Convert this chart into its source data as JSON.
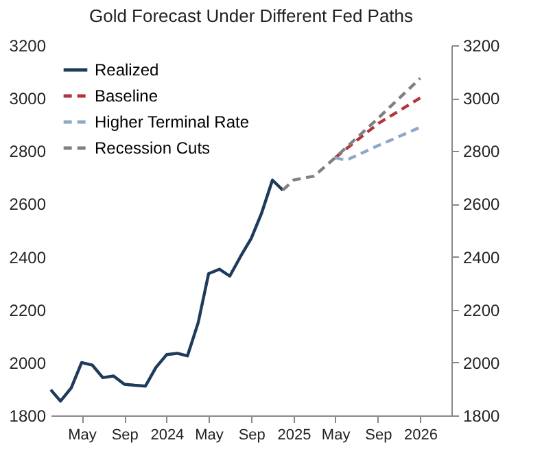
{
  "chart_data": {
    "type": "line",
    "title": "Gold Forecast Under Different Fed Paths",
    "xlim": [
      "2023-02",
      "2026-04"
    ],
    "xticks": [
      {
        "value": "2023-05",
        "label": "May"
      },
      {
        "value": "2023-09",
        "label": "Sep"
      },
      {
        "value": "2024-01",
        "label": "2024"
      },
      {
        "value": "2024-05",
        "label": "May"
      },
      {
        "value": "2024-09",
        "label": "Sep"
      },
      {
        "value": "2025-01",
        "label": "2025"
      },
      {
        "value": "2025-05",
        "label": "May"
      },
      {
        "value": "2025-09",
        "label": "Sep"
      },
      {
        "value": "2026-01",
        "label": "2026"
      }
    ],
    "ylim": [
      1800,
      3200
    ],
    "yticks": [
      1800,
      2000,
      2200,
      2400,
      2600,
      2800,
      3000,
      3200
    ],
    "y2lim": [
      1800,
      3200
    ],
    "y2ticks": [
      1800,
      2000,
      2200,
      2400,
      2600,
      2800,
      3000,
      3200
    ],
    "legend": "top left",
    "grid": false,
    "series": [
      {
        "name": "Realized",
        "color": "#1f3b5a",
        "line_style": "solid",
        "x": [
          "2023-02",
          "2023-03",
          "2023-04",
          "2023-05",
          "2023-06",
          "2023-07",
          "2023-08",
          "2023-09",
          "2023-10",
          "2023-11",
          "2023-12",
          "2024-01",
          "2024-02",
          "2024-03",
          "2024-04",
          "2024-05",
          "2024-06",
          "2024-07",
          "2024-08",
          "2024-09",
          "2024-10",
          "2024-11",
          "2024-12"
        ],
        "values": [
          1897,
          1854,
          1904,
          2000,
          1990,
          1943,
          1949,
          1918,
          1914,
          1911,
          1981,
          2030,
          2035,
          2025,
          2151,
          2336,
          2353,
          2327,
          2401,
          2470,
          2566,
          2690,
          2652
        ]
      },
      {
        "name": "Baseline",
        "color": "#b5343c",
        "line_style": "dashed",
        "x": [
          "2025-05",
          "2025-09",
          "2026-01"
        ],
        "values": [
          2775,
          2903,
          3001
        ]
      },
      {
        "name": "Higher Terminal Rate",
        "color": "#8ea9c8",
        "line_style": "dashed",
        "x": [
          "2025-05",
          "2025-06",
          "2025-09",
          "2026-01"
        ],
        "values": [
          2775,
          2765,
          2820,
          2890
        ]
      },
      {
        "name": "Recession Cuts",
        "color": "#808080",
        "line_style": "dashed",
        "x": [
          "2024-12",
          "2025-01",
          "2025-03",
          "2025-05",
          "2025-09",
          "2026-01"
        ],
        "values": [
          2652,
          2690,
          2705,
          2775,
          2923,
          3075
        ]
      }
    ]
  }
}
